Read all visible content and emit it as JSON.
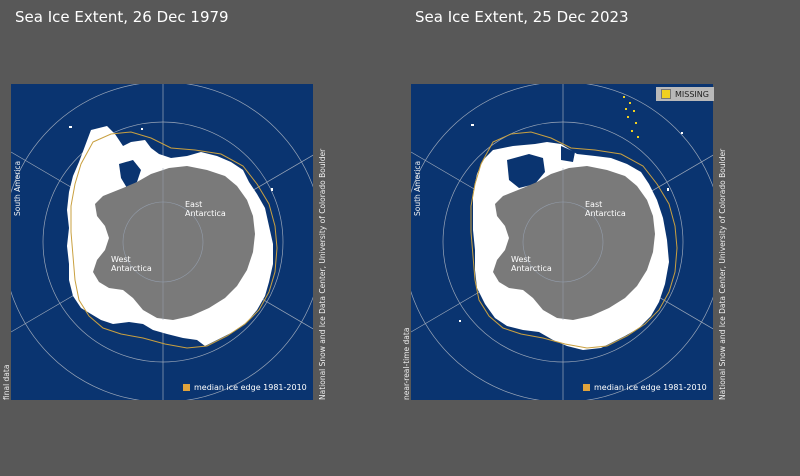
{
  "colors": {
    "ocean": "#0a3470",
    "land": "#7a7a7a",
    "ice": "#ffffff",
    "median_edge": "#c9a040",
    "missing": "#f0d020",
    "grid": "#9aa6b8"
  },
  "panels": [
    {
      "title": "Sea Ice Extent, 26 Dec 1979",
      "region_south_america": "South America",
      "region_east_1": "East",
      "region_east_2": "Antarctica",
      "region_west_1": "West",
      "region_west_2": "Antarctica",
      "legend": "median ice edge 1981-2010",
      "data_type": "final data",
      "credit": "National Snow and Ice Data Center, University of Colorado Boulder"
    },
    {
      "title": "Sea Ice Extent, 25 Dec 2023",
      "region_south_america": "South America",
      "region_east_1": "East",
      "region_east_2": "Antarctica",
      "region_west_1": "West",
      "region_west_2": "Antarctica",
      "legend": "median ice edge 1981-2010",
      "data_type": "near-real-time data",
      "credit": "National Snow and Ice Data Center, University of Colorado Boulder",
      "missing_label": "MISSING"
    }
  ]
}
